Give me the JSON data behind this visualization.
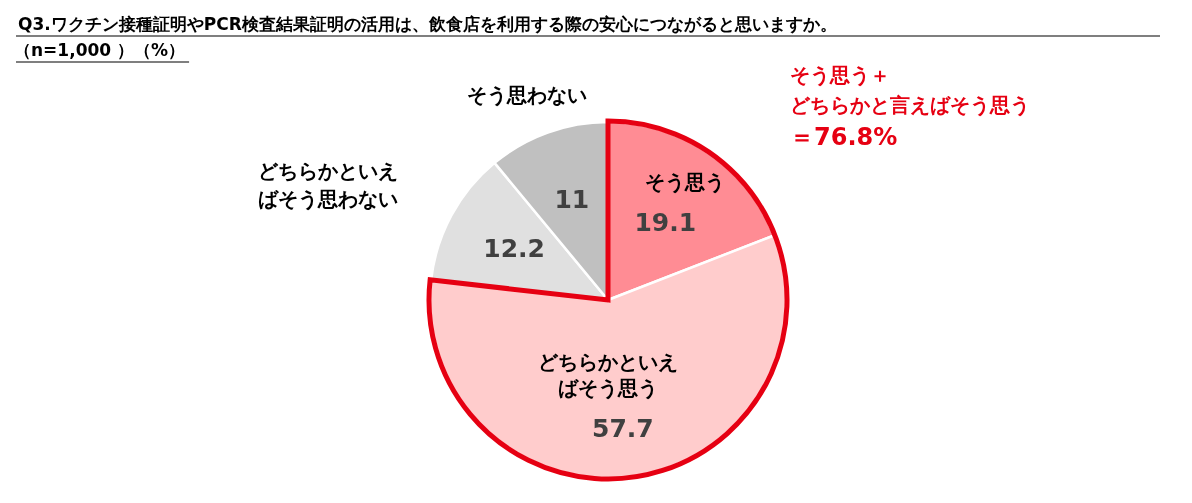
{
  "chart_data": {
    "type": "pie",
    "title": "Q3.ワクチン接種証明やPCR検査結果証明の活用は、飲食店を利用する際の安心につながると思いますか。",
    "subtitle": "（n=1,000 ）（%）",
    "categories": [
      "そう思う",
      "どちらかといえばそう思う",
      "どちらかといえばそう思わない",
      "そう思わない"
    ],
    "values": [
      19.1,
      57.7,
      12.2,
      11
    ],
    "colors": [
      "#ff8c94",
      "#ffcccc",
      "#e0e0e0",
      "#c0c0c0"
    ],
    "data_labels": true,
    "annotations": [
      "そう思う＋",
      "どちらかと言えばそう思う",
      "＝76.8%"
    ]
  }
}
